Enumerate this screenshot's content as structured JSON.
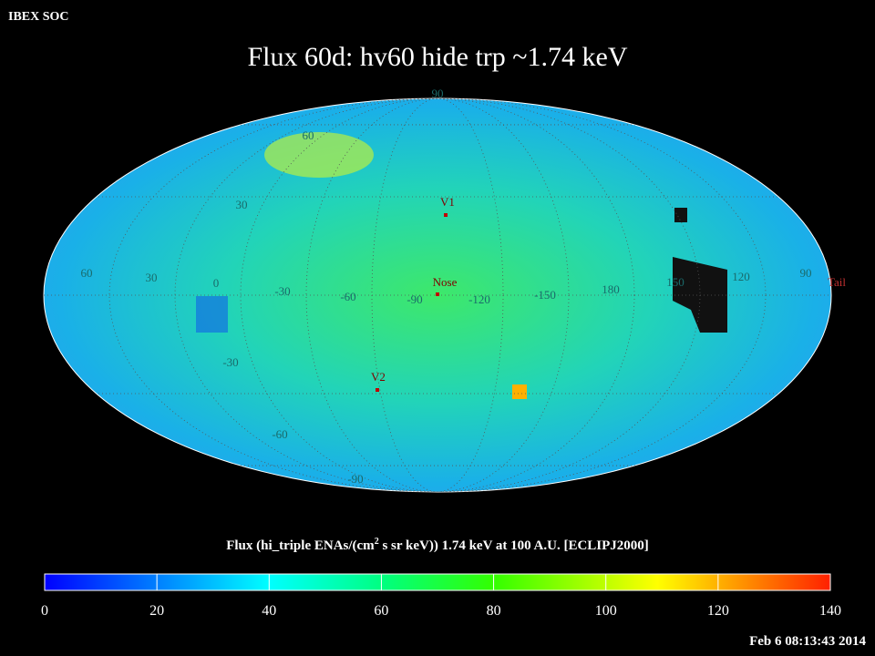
{
  "corner_label": "IBEX SOC",
  "title": "Flux   60d: hv60 hide trp ~1.74 keV",
  "map": {
    "grid_labels": [
      "90",
      "60",
      "30",
      "60",
      "30",
      "0",
      "-30",
      "-60",
      "-90",
      "-120",
      "-150",
      "180",
      "150",
      "120",
      "90",
      "-30",
      "-60",
      "-90"
    ],
    "markers": [
      {
        "label": "V1"
      },
      {
        "label": "Nose"
      },
      {
        "label": "V2"
      },
      {
        "label": "Tail"
      }
    ]
  },
  "colorbar": {
    "caption_start": "Flux (hi_triple ENAs/(cm",
    "caption_superscript": "2",
    "caption_end": " s sr keV))  1.74 keV at 100 A.U. [ECLIPJ2000]",
    "lim": [
      0,
      140
    ],
    "ticks": [
      0,
      20,
      40,
      60,
      80,
      100,
      120,
      140
    ]
  },
  "timestamp": "Feb  6 08:13:43 2014"
}
